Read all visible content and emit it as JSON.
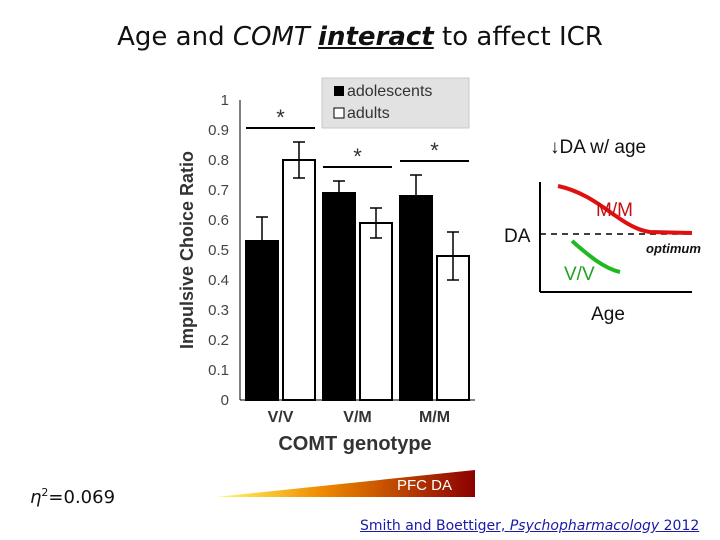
{
  "slide": {
    "title_part1": "Age and ",
    "title_gene": "COMT",
    "title_space": " ",
    "title_emph": "interact",
    "title_part2": " to affect ICR",
    "eta_prefix": "η",
    "eta_sup": "2",
    "eta_value": "=0.069",
    "gradient_label": "PFC DA",
    "citation_authors": "Smith and Boettiger, ",
    "citation_journal": "Psychopharmacology",
    "citation_year": " 2012",
    "colors": {
      "gradient_start": "#ffff66",
      "gradient_mid": "#f08c00",
      "gradient_end": "#8b0000"
    }
  },
  "chart_data": [
    {
      "type": "bar",
      "categories": [
        "V/V",
        "V/M",
        "M/M"
      ],
      "series": [
        {
          "name": "adolescents",
          "values": [
            0.53,
            0.69,
            0.68
          ],
          "errors": [
            0.08,
            0.04,
            0.07
          ],
          "color": "#000000"
        },
        {
          "name": "adults",
          "values": [
            0.8,
            0.59,
            0.48
          ],
          "errors": [
            0.06,
            0.05,
            0.08
          ],
          "color": "#ffffff"
        }
      ],
      "significance": [
        "*",
        "*",
        "*"
      ],
      "xlabel": "COMT genotype",
      "ylabel": "Impulsive Choice Ratio",
      "ylim": [
        0,
        1
      ],
      "yticks": [
        "0",
        "0.1",
        "0.2",
        "0.3",
        "0.4",
        "0.5",
        "0.6",
        "0.7",
        "0.8",
        "0.9",
        "1"
      ],
      "legend_position": "top"
    },
    {
      "type": "line",
      "title": "↓DA w/ age",
      "xlabel": "Age",
      "ylabel": "DA",
      "reference_label": "optimum",
      "series": [
        {
          "name": "M/M",
          "color": "#e01010"
        },
        {
          "name": "V/V",
          "color": "#22b822"
        }
      ]
    }
  ]
}
